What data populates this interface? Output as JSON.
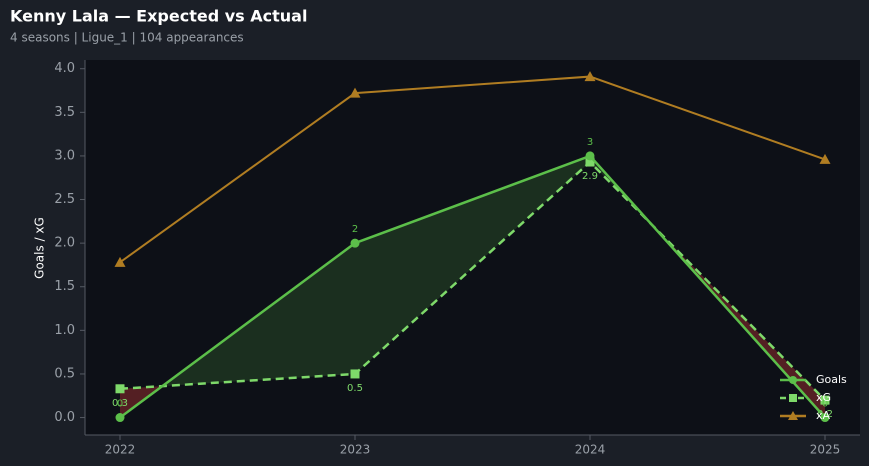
{
  "chart_data": {
    "type": "line",
    "title": "Kenny Lala — Expected vs Actual",
    "subtitle": "4 seasons | Ligue_1 | 104 appearances",
    "ylabel": "Goals / xG",
    "categories": [
      "2022",
      "2023",
      "2024",
      "2025"
    ],
    "series": [
      {
        "name": "Goals",
        "color": "#5cbf4a",
        "marker": "circle",
        "linestyle": "solid",
        "values": [
          0,
          2,
          3,
          0
        ]
      },
      {
        "name": "xG",
        "color": "#7ed96a",
        "marker": "square",
        "linestyle": "dashed",
        "values": [
          0.33,
          0.5,
          2.93,
          0.2
        ],
        "value_labels": [
          "0.3",
          "0.5",
          "2.9",
          "0.2"
        ]
      },
      {
        "name": "xA",
        "color": "#b07d22",
        "marker": "triangle",
        "linestyle": "solid",
        "values": [
          1.78,
          3.72,
          3.91,
          2.96
        ]
      }
    ],
    "ylim": [
      -0.2,
      4.1
    ],
    "yticks": [
      {
        "value": 0,
        "label": "0.0"
      },
      {
        "value": 0.5,
        "label": "0.5"
      },
      {
        "value": 1,
        "label": "1.0"
      },
      {
        "value": 1.5,
        "label": "1.5"
      },
      {
        "value": 2,
        "label": "2.0"
      },
      {
        "value": 2.5,
        "label": "2.5"
      },
      {
        "value": 3,
        "label": "3.0"
      },
      {
        "value": 3.5,
        "label": "3.5"
      },
      {
        "value": 4,
        "label": "4.0"
      }
    ],
    "legend": "lower right",
    "grid": false
  }
}
